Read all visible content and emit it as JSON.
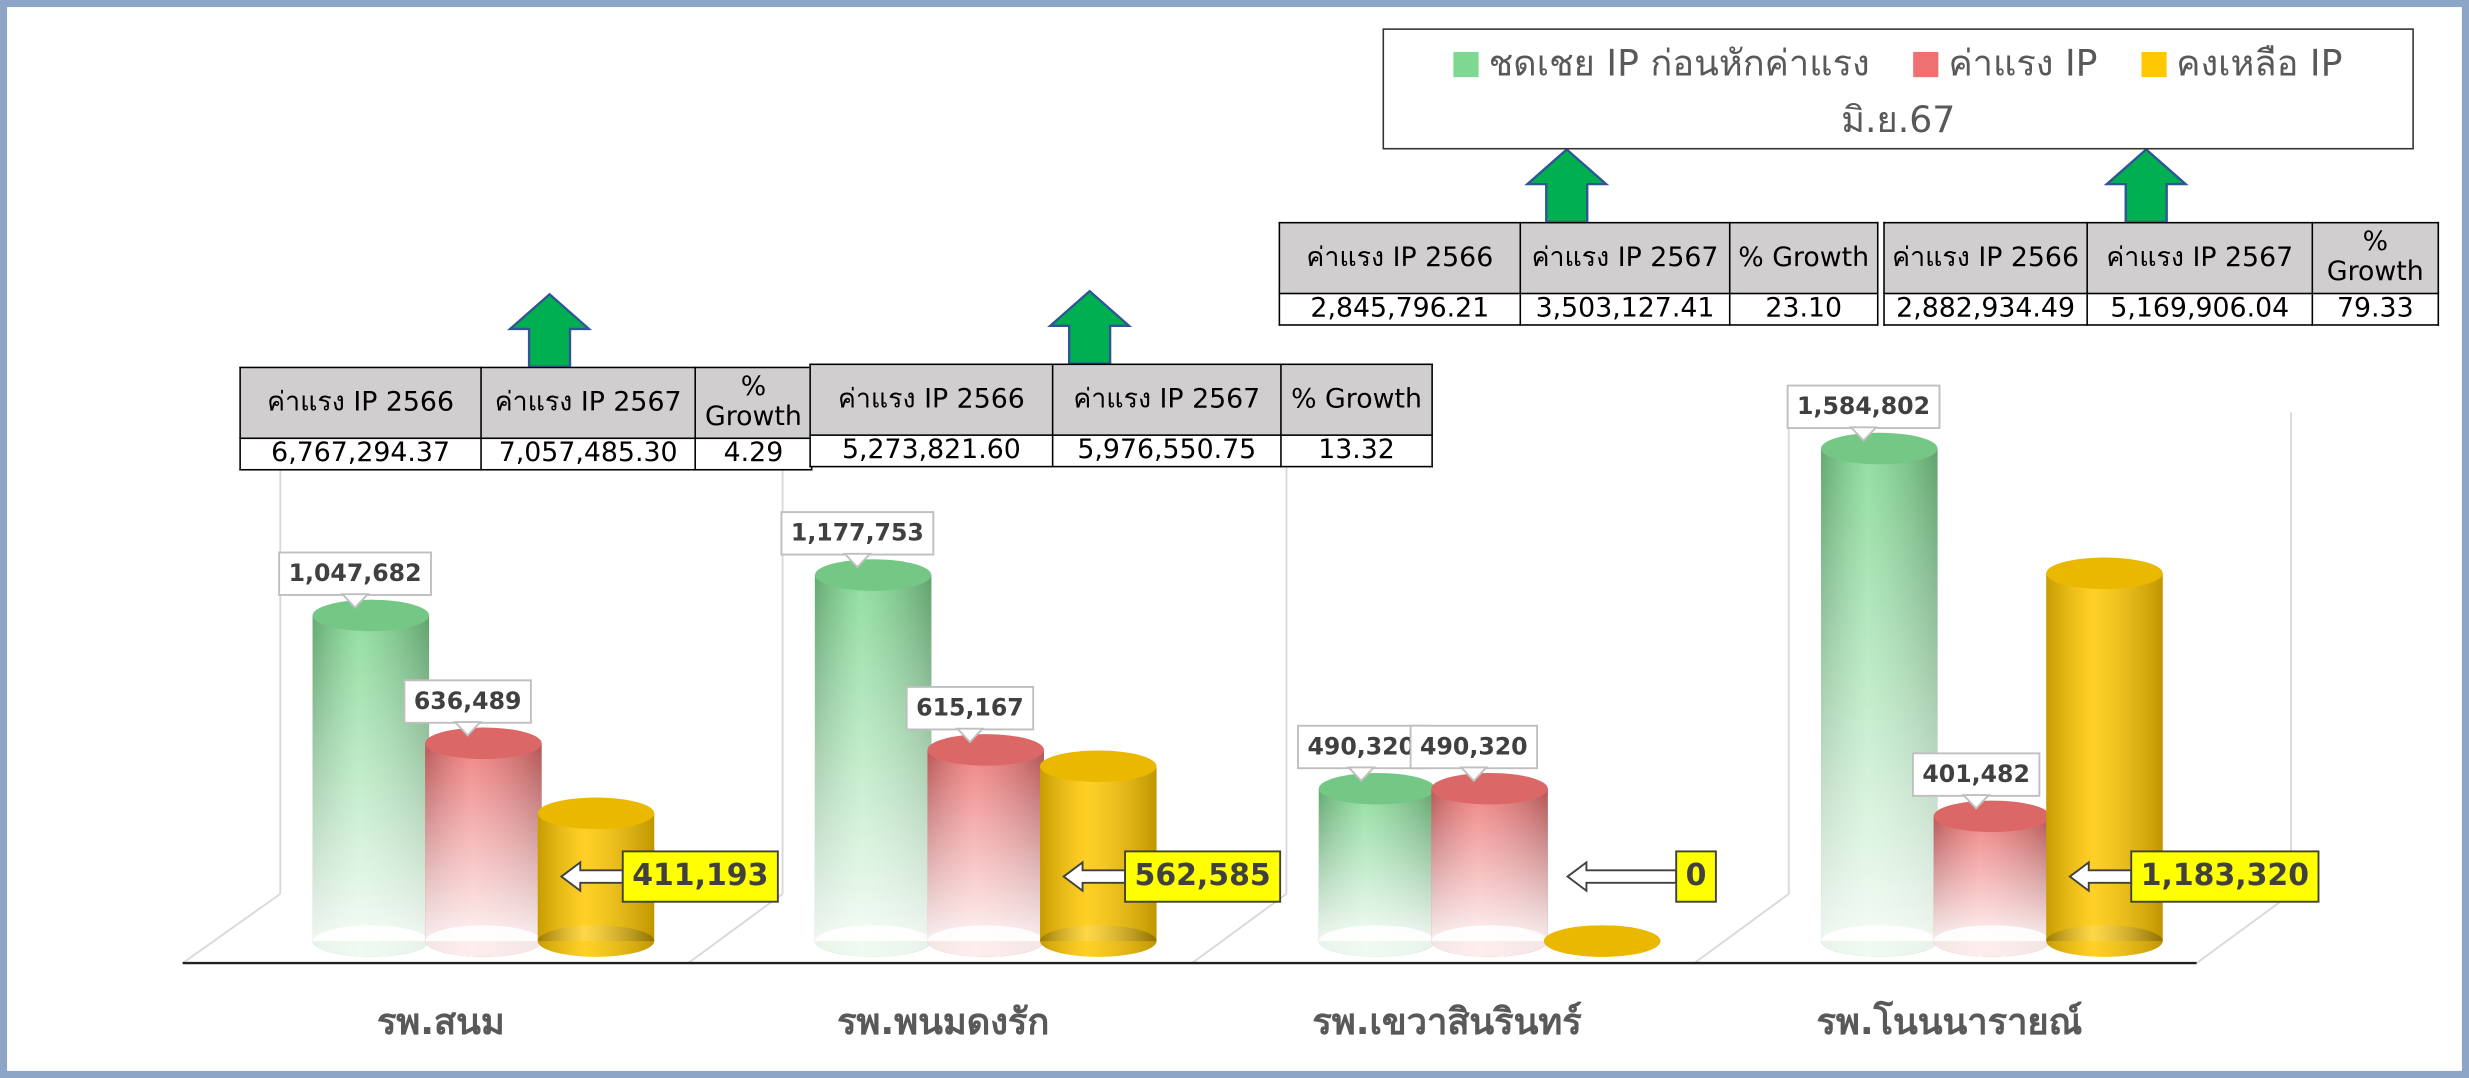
{
  "chart_data": {
    "type": "bar",
    "subtitle": "มิ.ย.67",
    "categories": [
      "รพ.สนม",
      "รพ.พนมดงรัก",
      "รพ.เขวาสินรินทร์",
      "รพ.โนนนารายณ์"
    ],
    "series": [
      {
        "name": "ชดเชย IP ก่อนหักค่าแรง",
        "color": "#7fd891",
        "values": [
          1047682,
          1177753,
          490320,
          1584802
        ],
        "value_labels": [
          "1,047,682",
          "1,177,753",
          "490,320",
          "1,584,802"
        ]
      },
      {
        "name": "ค่าแรง IP",
        "color": "#ee7070",
        "values": [
          636489,
          615167,
          490320,
          401482
        ],
        "value_labels": [
          "636,489",
          "615,167",
          "490,320",
          "401,482"
        ]
      },
      {
        "name": "คงเหลือ IP",
        "color": "#ffc800",
        "values": [
          411193,
          562585,
          0,
          1183320
        ],
        "value_labels": [
          "411,193",
          "562,585",
          "0",
          "1,183,320"
        ]
      }
    ],
    "ylim": [
      0,
      1800000
    ]
  },
  "tables": [
    {
      "header": [
        "ค่าแรง IP  2566",
        "ค่าแรง IP 2567",
        "% Growth"
      ],
      "row": [
        "6,767,294.37",
        "7,057,485.30",
        "4.29"
      ]
    },
    {
      "header": [
        "ค่าแรง IP 2566",
        "ค่าแรง IP 2567",
        "% Growth"
      ],
      "row": [
        "5,273,821.60",
        "5,976,550.75",
        "13.32"
      ]
    },
    {
      "header": [
        "ค่าแรง IP  2566",
        "ค่าแรง IP 2567",
        "% Growth"
      ],
      "row": [
        "2,845,796.21",
        "3,503,127.41",
        "23.10"
      ]
    },
    {
      "header": [
        "ค่าแรง IP 2566",
        "ค่าแรง IP 2567",
        "% Growth"
      ],
      "row": [
        "2,882,934.49",
        "5,169,906.04",
        "79.33"
      ]
    }
  ]
}
